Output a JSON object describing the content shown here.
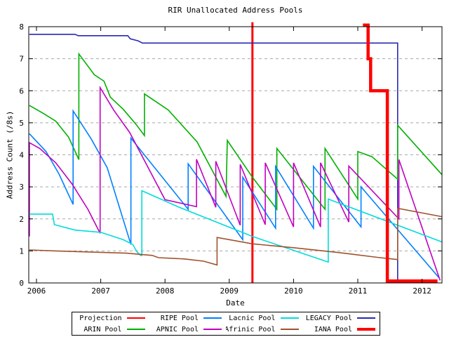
{
  "title": "RIR Unallocated Address Pools",
  "axes": {
    "x_label": "Date",
    "y_label": "Address Count (/8s)"
  },
  "colors": {
    "axis": "#000000",
    "grid": "#a8a8a8",
    "background": "#ffffff",
    "projection_red": "#ff0000",
    "ripe_blue": "#0080ff",
    "lacnic_cyan": "#00dcdc",
    "legacy_navy": "#2828b4",
    "arin_green": "#00b000",
    "apnic_magenta": "#c000c0",
    "afrinic_brown": "#a0522d",
    "iana_red": "#ff0000"
  },
  "legend": {
    "entries": [
      {
        "label": "Projection",
        "color": "#ff0000",
        "thick": false
      },
      {
        "label": "RIPE Pool",
        "color": "#0080ff",
        "thick": false
      },
      {
        "label": "Lacnic Pool",
        "color": "#00dcdc",
        "thick": false
      },
      {
        "label": "LEGACY Pool",
        "color": "#2828b4",
        "thick": false
      },
      {
        "label": "ARIN Pool",
        "color": "#00b000",
        "thick": false
      },
      {
        "label": "APNIC Pool",
        "color": "#c000c0",
        "thick": false
      },
      {
        "label": "Afrinic Pool",
        "color": "#a0522d",
        "thick": false
      },
      {
        "label": "IANA Pool",
        "color": "#ff0000",
        "thick": true
      }
    ]
  },
  "chart_data": {
    "type": "line",
    "title": "RIR Unallocated Address Pools",
    "xlabel": "Date",
    "ylabel": "Address Count (/8s)",
    "xlim": [
      2005.88,
      2012.31
    ],
    "ylim": [
      0,
      8
    ],
    "x_ticks": [
      2006,
      2007,
      2008,
      2009,
      2010,
      2011,
      2012
    ],
    "y_ticks": [
      0,
      1,
      2,
      3,
      4,
      5,
      6,
      7,
      8
    ],
    "grid_values": [
      1,
      2,
      3,
      4,
      5,
      6,
      7
    ],
    "grid": "horizontal-dashed",
    "legend_position": "bottom-outside",
    "note": "Sawtooth vertices estimated from pixels; vertical red line marks projection start; IANA line enters from above y-range.",
    "series": [
      {
        "name": "Projection",
        "color": "#ff0000",
        "width": 3,
        "points": [
          [
            2009.36,
            0
          ],
          [
            2009.36,
            8.14
          ]
        ]
      },
      {
        "name": "LEGACY Pool",
        "color": "#2828b4",
        "width": 1.6,
        "points": [
          [
            2005.89,
            7.76
          ],
          [
            2006.6,
            7.76
          ],
          [
            2006.65,
            7.72
          ],
          [
            2007.42,
            7.72
          ],
          [
            2007.46,
            7.62
          ],
          [
            2007.58,
            7.56
          ],
          [
            2007.65,
            7.49
          ],
          [
            2011.62,
            7.49
          ],
          [
            2011.62,
            0.02
          ]
        ]
      },
      {
        "name": "ARIN Pool",
        "color": "#00b000",
        "width": 1.6,
        "points": [
          [
            2005.89,
            5.54
          ],
          [
            2006.1,
            5.3
          ],
          [
            2006.3,
            5.05
          ],
          [
            2006.5,
            4.55
          ],
          [
            2006.66,
            3.85
          ],
          [
            2006.66,
            7.15
          ],
          [
            2006.9,
            6.5
          ],
          [
            2007.05,
            6.3
          ],
          [
            2007.15,
            5.8
          ],
          [
            2007.35,
            5.42
          ],
          [
            2007.55,
            4.95
          ],
          [
            2007.68,
            4.6
          ],
          [
            2007.68,
            5.9
          ],
          [
            2008.05,
            5.4
          ],
          [
            2008.5,
            4.4
          ],
          [
            2008.95,
            2.7
          ],
          [
            2008.97,
            4.45
          ],
          [
            2009.36,
            3.3
          ],
          [
            2009.74,
            2.3
          ],
          [
            2009.74,
            4.2
          ],
          [
            2010.49,
            2.3
          ],
          [
            2010.49,
            4.2
          ],
          [
            2011.0,
            2.62
          ],
          [
            2011.0,
            4.1
          ],
          [
            2011.22,
            3.94
          ],
          [
            2011.62,
            3.24
          ],
          [
            2011.62,
            4.92
          ],
          [
            2012.31,
            3.38
          ]
        ]
      },
      {
        "name": "RIPE Pool",
        "color": "#0080ff",
        "width": 1.6,
        "points": [
          [
            2005.89,
            4.66
          ],
          [
            2006.15,
            4.1
          ],
          [
            2006.35,
            3.4
          ],
          [
            2006.57,
            2.45
          ],
          [
            2006.57,
            5.37
          ],
          [
            2006.85,
            4.5
          ],
          [
            2007.1,
            3.6
          ],
          [
            2007.3,
            2.3
          ],
          [
            2007.47,
            1.2
          ],
          [
            2007.47,
            4.52
          ],
          [
            2008.36,
            2.3
          ],
          [
            2008.36,
            3.72
          ],
          [
            2009.21,
            1.35
          ],
          [
            2009.21,
            3.3
          ],
          [
            2009.72,
            1.71
          ],
          [
            2009.72,
            3.64
          ],
          [
            2010.31,
            1.71
          ],
          [
            2010.31,
            3.64
          ],
          [
            2011.05,
            1.75
          ],
          [
            2011.05,
            3.0
          ],
          [
            2012.27,
            0.15
          ]
        ]
      },
      {
        "name": "APNIC Pool",
        "color": "#c000c0",
        "width": 1.6,
        "points": [
          [
            2005.89,
            1.45
          ],
          [
            2005.89,
            4.38
          ],
          [
            2006.05,
            4.2
          ],
          [
            2006.3,
            3.75
          ],
          [
            2006.55,
            3.1
          ],
          [
            2006.8,
            2.3
          ],
          [
            2006.99,
            1.55
          ],
          [
            2006.99,
            6.1
          ],
          [
            2007.2,
            5.4
          ],
          [
            2007.45,
            4.7
          ],
          [
            2008.0,
            2.6
          ],
          [
            2008.49,
            2.38
          ],
          [
            2008.49,
            3.86
          ],
          [
            2008.79,
            2.36
          ],
          [
            2008.79,
            3.8
          ],
          [
            2009.17,
            1.8
          ],
          [
            2009.17,
            3.7
          ],
          [
            2009.56,
            1.82
          ],
          [
            2009.56,
            3.75
          ],
          [
            2010.0,
            1.75
          ],
          [
            2010.0,
            3.75
          ],
          [
            2010.42,
            1.75
          ],
          [
            2010.42,
            3.75
          ],
          [
            2010.86,
            1.9
          ],
          [
            2010.86,
            3.65
          ],
          [
            2011.64,
            2.0
          ],
          [
            2011.64,
            3.85
          ],
          [
            2012.28,
            0.08
          ]
        ]
      },
      {
        "name": "Lacnic Pool",
        "color": "#00dcdc",
        "width": 1.6,
        "points": [
          [
            2005.89,
            2.15
          ],
          [
            2006.25,
            2.15
          ],
          [
            2006.28,
            1.82
          ],
          [
            2006.6,
            1.65
          ],
          [
            2007.0,
            1.58
          ],
          [
            2007.35,
            1.35
          ],
          [
            2007.5,
            1.2
          ],
          [
            2007.56,
            0.98
          ],
          [
            2007.62,
            0.86
          ],
          [
            2007.64,
            0.86
          ],
          [
            2007.64,
            2.88
          ],
          [
            2008.2,
            2.38
          ],
          [
            2009.36,
            1.45
          ],
          [
            2010.54,
            0.65
          ],
          [
            2010.54,
            2.62
          ],
          [
            2012.31,
            1.28
          ]
        ]
      },
      {
        "name": "Afrinic Pool",
        "color": "#a0522d",
        "width": 1.6,
        "points": [
          [
            2005.89,
            1.03
          ],
          [
            2006.3,
            1.0
          ],
          [
            2007.4,
            0.93
          ],
          [
            2007.8,
            0.86
          ],
          [
            2007.9,
            0.79
          ],
          [
            2008.3,
            0.75
          ],
          [
            2008.6,
            0.68
          ],
          [
            2008.81,
            0.56
          ],
          [
            2008.81,
            1.42
          ],
          [
            2009.36,
            1.22
          ],
          [
            2010.0,
            1.1
          ],
          [
            2010.7,
            0.95
          ],
          [
            2011.3,
            0.8
          ],
          [
            2011.62,
            0.73
          ],
          [
            2011.62,
            2.33
          ],
          [
            2012.31,
            2.07
          ]
        ]
      },
      {
        "name": "IANA Pool",
        "color": "#ff0000",
        "width": 4.5,
        "points": [
          [
            2011.08,
            8.05
          ],
          [
            2011.16,
            8.05
          ],
          [
            2011.16,
            7.0
          ],
          [
            2011.2,
            7.0
          ],
          [
            2011.2,
            6.0
          ],
          [
            2011.46,
            6.0
          ],
          [
            2011.46,
            0.06
          ],
          [
            2012.24,
            0.06
          ]
        ]
      }
    ]
  }
}
